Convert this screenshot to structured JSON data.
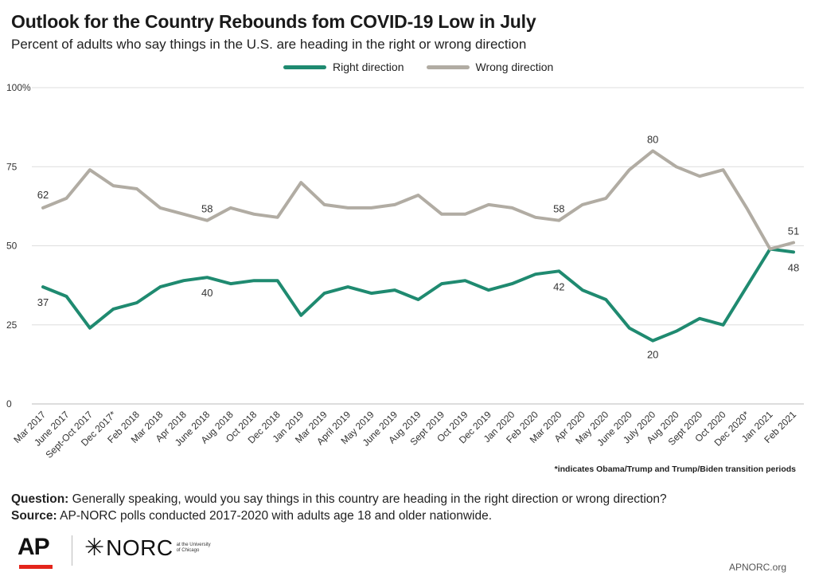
{
  "header": {
    "title": "Outlook for the Country Rebounds fom COVID-19 Low in July",
    "subtitle": "Percent of adults who say things in the U.S. are heading in the right or wrong direction"
  },
  "legend": {
    "right_label": "Right direction",
    "wrong_label": "Wrong direction"
  },
  "colors": {
    "right": "#1f8a70",
    "wrong": "#b1aca3",
    "grid": "#dddddd"
  },
  "footnote": "*indicates Obama/Trump and Trump/Biden transition periods",
  "question": {
    "label": "Question:",
    "text": "Generally speaking, would you say things in this country are heading in the right direction or wrong direction?"
  },
  "source": {
    "label": "Source:",
    "text": "AP-NORC polls conducted 2017-2020 with adults age 18 and older nationwide."
  },
  "logos": {
    "ap": "AP",
    "norc": "NORC",
    "norc_sub": "at the University of Chicago",
    "site": "APNORC.org"
  },
  "chart_data": {
    "type": "line",
    "categories": [
      "Mar 2017",
      "June 2017",
      "Sept-Oct 2017",
      "Dec 2017*",
      "Feb 2018",
      "Mar 2018",
      "Apr 2018",
      "June 2018",
      "Aug 2018",
      "Oct 2018",
      "Dec 2018",
      "Jan 2019",
      "Mar 2019",
      "April 2019",
      "May 2019",
      "June 2019",
      "Aug 2019",
      "Sept 2019",
      "Oct 2019",
      "Dec 2019",
      "Jan 2020",
      "Feb 2020",
      "Mar 2020",
      "Apr 2020",
      "May 2020",
      "June 2020",
      "July 2020",
      "Aug 2020",
      "Sept 2020",
      "Oct 2020",
      "Dec 2020*",
      "Jan 2021",
      "Feb 2021"
    ],
    "series": [
      {
        "name": "Right direction",
        "values": [
          37,
          34,
          24,
          30,
          32,
          37,
          39,
          40,
          38,
          39,
          39,
          28,
          35,
          37,
          35,
          36,
          33,
          38,
          39,
          36,
          38,
          41,
          42,
          36,
          33,
          24,
          20,
          23,
          27,
          25,
          37,
          49,
          48
        ],
        "labels": {
          "0": "37",
          "7": "40",
          "22": "42",
          "26": "20",
          "32": "48"
        }
      },
      {
        "name": "Wrong direction",
        "values": [
          62,
          65,
          74,
          69,
          68,
          62,
          60,
          58,
          62,
          60,
          59,
          70,
          63,
          62,
          62,
          63,
          66,
          60,
          60,
          63,
          62,
          59,
          58,
          63,
          65,
          74,
          80,
          75,
          72,
          74,
          62,
          49,
          51
        ],
        "labels": {
          "0": "62",
          "7": "58",
          "22": "58",
          "26": "80",
          "32": "51"
        }
      }
    ],
    "ylim": [
      0,
      100
    ],
    "yticks": [
      0,
      25,
      50,
      75,
      100
    ],
    "ytick_labels": [
      "0",
      "25",
      "50",
      "75",
      "100%"
    ],
    "grid": true,
    "legend": "top-center"
  }
}
